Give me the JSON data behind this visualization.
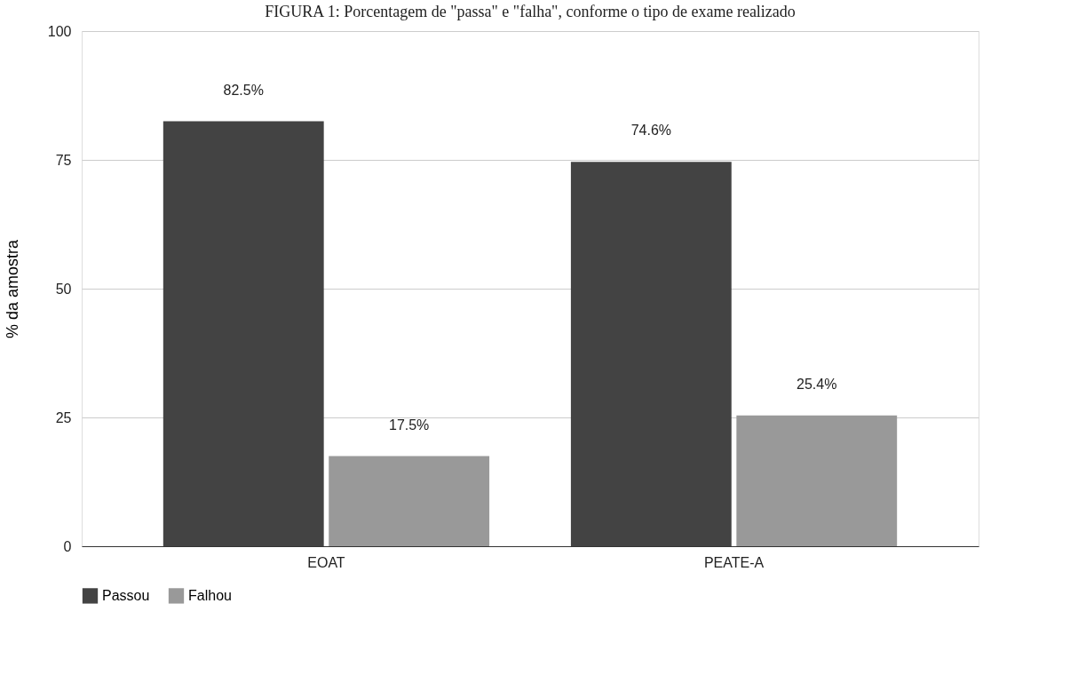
{
  "chart_data": {
    "type": "bar",
    "title": "FIGURA 1: Porcentagem de \"passa\" e \"falha\", conforme o tipo de exame realizado",
    "ylabel": "% da amostra",
    "categories": [
      "EOAT",
      "PEATE-A"
    ],
    "series": [
      {
        "name": "Passou",
        "color": "#434343",
        "values": [
          82.5,
          74.6
        ],
        "value_labels": [
          "82.5%",
          "74.6%"
        ]
      },
      {
        "name": "Falhou",
        "color": "#999999",
        "values": [
          17.5,
          25.4
        ],
        "value_labels": [
          "17.5%",
          "25.4%"
        ]
      }
    ],
    "ylim": [
      0,
      100
    ],
    "yticks": [
      0,
      25,
      50,
      75,
      100
    ],
    "grid": "y",
    "legend": "bottom"
  }
}
